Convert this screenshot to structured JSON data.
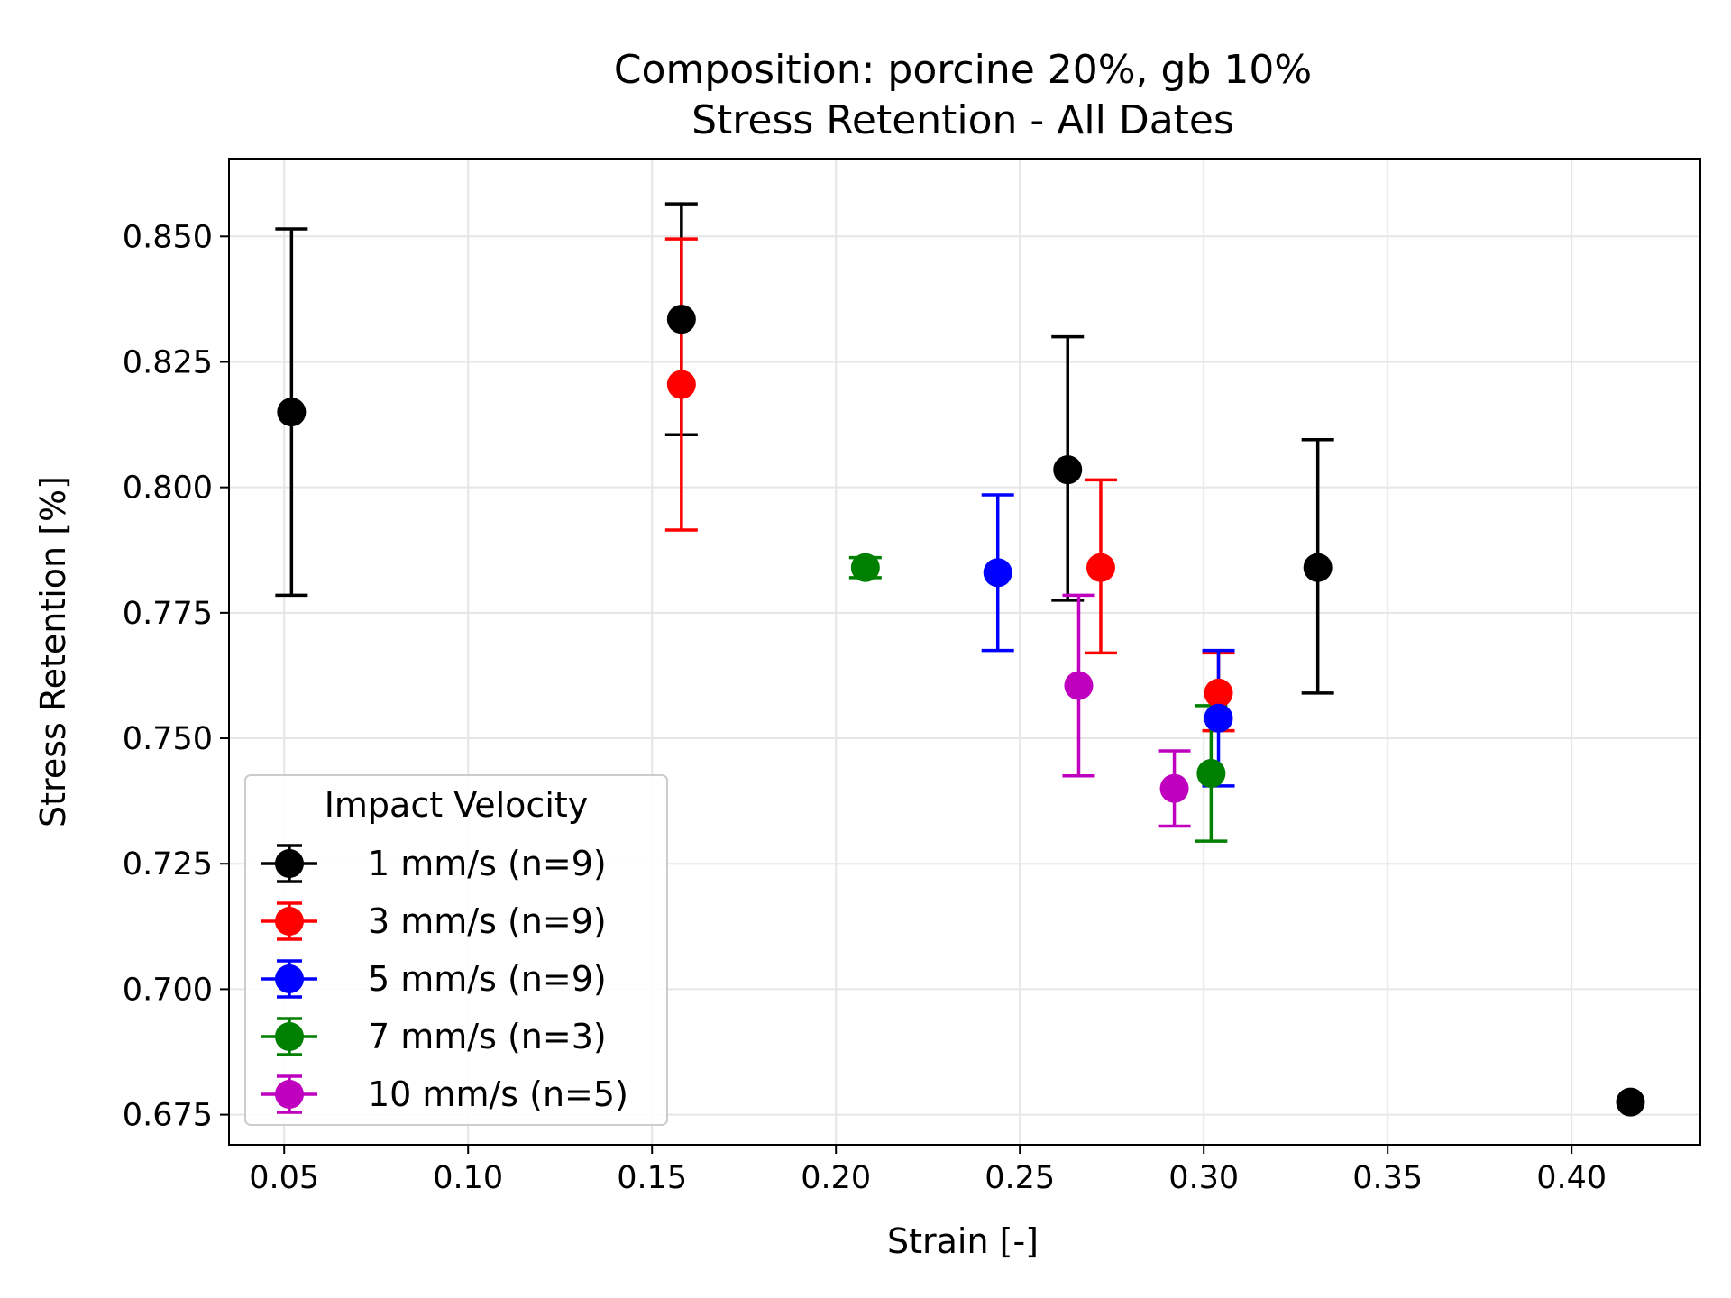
{
  "chart_data": {
    "type": "scatter",
    "title": "Composition: porcine 20%, gb 10%",
    "subtitle": "Stress Retention - All Dates",
    "xlabel": "Strain [-]",
    "ylabel": "Stress Retention [%]",
    "xlim": [
      0.035,
      0.435
    ],
    "ylim": [
      0.669,
      0.8655
    ],
    "x_ticks": [
      "0.05",
      "0.10",
      "0.15",
      "0.20",
      "0.25",
      "0.30",
      "0.35",
      "0.40"
    ],
    "y_ticks": [
      "0.675",
      "0.700",
      "0.725",
      "0.750",
      "0.775",
      "0.800",
      "0.825",
      "0.850"
    ],
    "grid": true,
    "legend": {
      "title": "Impact Velocity",
      "position": "lower-left"
    },
    "series": [
      {
        "name": "1 mm/s (n=9)",
        "color": "#000000",
        "points": [
          {
            "x": 0.052,
            "y": 0.815,
            "err_low": 0.7785,
            "err_high": 0.8515
          },
          {
            "x": 0.158,
            "y": 0.8335,
            "err_low": 0.8105,
            "err_high": 0.8565
          },
          {
            "x": 0.263,
            "y": 0.8035,
            "err_low": 0.7775,
            "err_high": 0.83
          },
          {
            "x": 0.331,
            "y": 0.784,
            "err_low": 0.759,
            "err_high": 0.8095
          },
          {
            "x": 0.416,
            "y": 0.6775
          }
        ]
      },
      {
        "name": "3 mm/s (n=9)",
        "color": "#ff0000",
        "points": [
          {
            "x": 0.158,
            "y": 0.8205,
            "err_low": 0.7915,
            "err_high": 0.8495
          },
          {
            "x": 0.272,
            "y": 0.784,
            "err_low": 0.767,
            "err_high": 0.8015
          },
          {
            "x": 0.304,
            "y": 0.759,
            "err_low": 0.7515,
            "err_high": 0.767
          }
        ]
      },
      {
        "name": "5 mm/s (n=9)",
        "color": "#0000ff",
        "points": [
          {
            "x": 0.244,
            "y": 0.783,
            "err_low": 0.7675,
            "err_high": 0.7985
          },
          {
            "x": 0.304,
            "y": 0.754,
            "err_low": 0.7405,
            "err_high": 0.7675
          }
        ]
      },
      {
        "name": "7 mm/s (n=3)",
        "color": "#008000",
        "points": [
          {
            "x": 0.208,
            "y": 0.784,
            "err_low": 0.782,
            "err_high": 0.786
          },
          {
            "x": 0.302,
            "y": 0.743,
            "err_low": 0.7295,
            "err_high": 0.7565
          }
        ]
      },
      {
        "name": "10 mm/s (n=5)",
        "color": "#bf00bf",
        "points": [
          {
            "x": 0.266,
            "y": 0.7605,
            "err_low": 0.7425,
            "err_high": 0.7785
          },
          {
            "x": 0.292,
            "y": 0.74,
            "err_low": 0.7325,
            "err_high": 0.7475
          }
        ]
      }
    ]
  }
}
